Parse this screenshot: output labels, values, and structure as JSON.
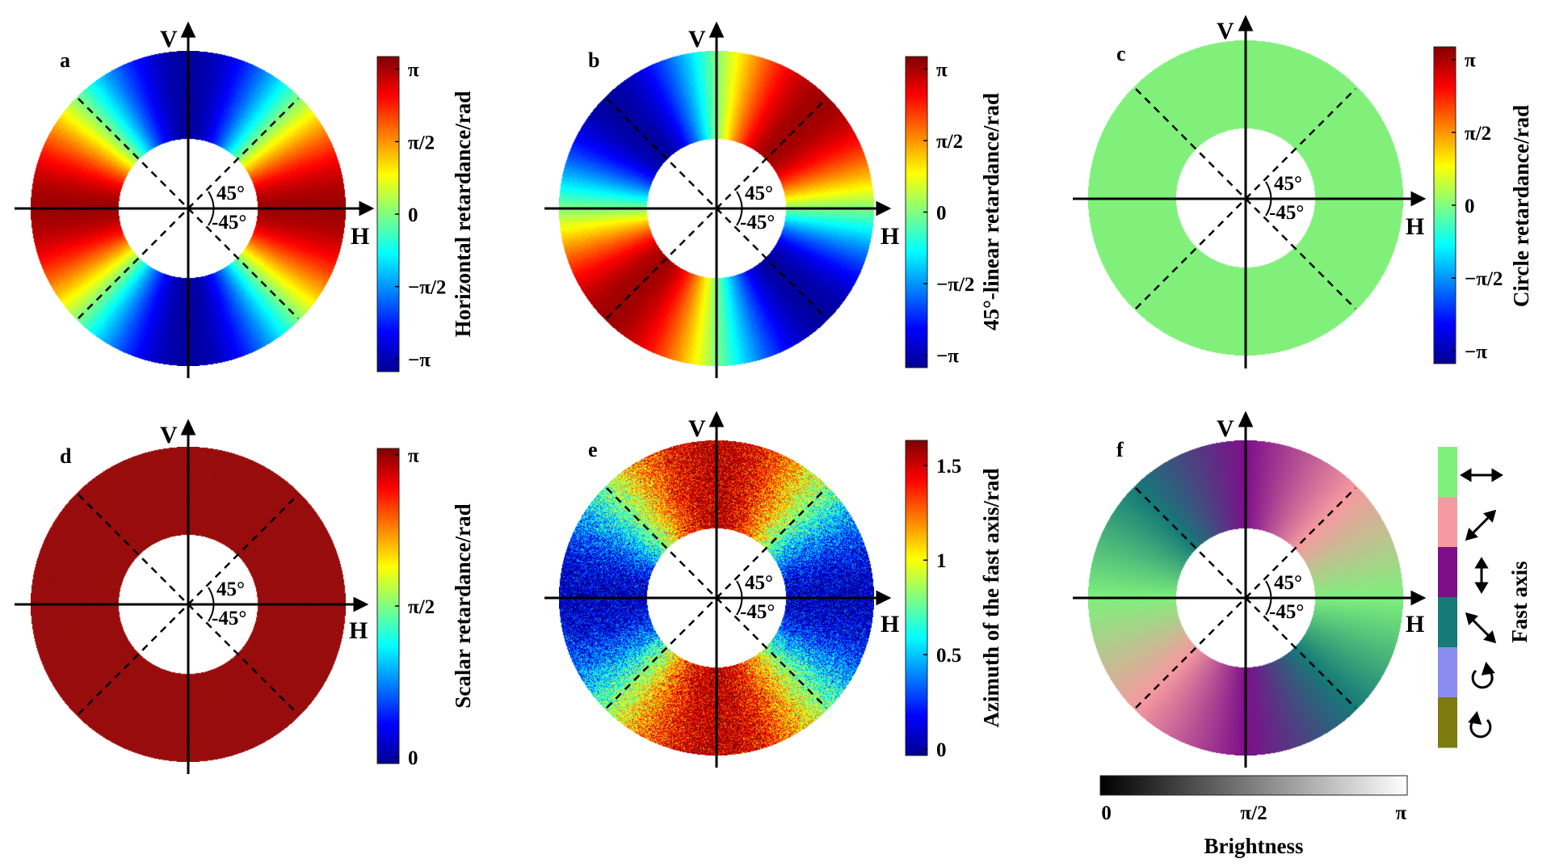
{
  "axes": {
    "v": "V",
    "h": "H",
    "angle_up": "45°",
    "angle_down": "-45°"
  },
  "colors": {
    "axis": "#000000",
    "uniform_circle": "#80f07a",
    "uniform_scalar": "#9a0d0d"
  },
  "panels": [
    {
      "letter": "a",
      "map": "horizontal",
      "colorbar_label": "Horizontal retardance/rad",
      "ticks": [
        {
          "label": "π",
          "value": 3.1416
        },
        {
          "label": "π/2",
          "value": 1.5708
        },
        {
          "label": "0",
          "value": 0
        },
        {
          "label": "−π/2",
          "value": -1.5708
        },
        {
          "label": "−π",
          "value": -3.1416
        }
      ],
      "range": [
        -3.1416,
        3.1416
      ]
    },
    {
      "letter": "b",
      "map": "linear45",
      "colorbar_label": "45°-linear retardance/rad",
      "ticks": [
        {
          "label": "π",
          "value": 3.1416
        },
        {
          "label": "π/2",
          "value": 1.5708
        },
        {
          "label": "0",
          "value": 0
        },
        {
          "label": "−π/2",
          "value": -1.5708
        },
        {
          "label": "−π",
          "value": -3.1416
        }
      ],
      "range": [
        -3.1416,
        3.1416
      ]
    },
    {
      "letter": "c",
      "map": "circle",
      "colorbar_label": "Circle retardance/rad",
      "ticks": [
        {
          "label": "π",
          "value": 3.1416
        },
        {
          "label": "π/2",
          "value": 1.5708
        },
        {
          "label": "0",
          "value": 0
        },
        {
          "label": "−π/2",
          "value": -1.5708
        },
        {
          "label": "−π",
          "value": -3.1416
        }
      ],
      "range": [
        -3.1416,
        3.1416
      ]
    },
    {
      "letter": "d",
      "map": "scalar",
      "colorbar_label": "Scalar retardance/rad",
      "ticks": [
        {
          "label": "π",
          "value": 3.1416
        },
        {
          "label": "π/2",
          "value": 1.5708
        },
        {
          "label": "0",
          "value": 0
        }
      ],
      "range": [
        0,
        3.1416
      ]
    },
    {
      "letter": "e",
      "map": "azimuth",
      "colorbar_label": "Azimuth of the fast axis/rad",
      "ticks": [
        {
          "label": "1.5",
          "value": 1.5
        },
        {
          "label": "1",
          "value": 1
        },
        {
          "label": "0.5",
          "value": 0.5
        },
        {
          "label": "0",
          "value": 0
        }
      ],
      "range": [
        0,
        1.6
      ]
    },
    {
      "letter": "f",
      "map": "fastaxis",
      "colorbar_label": "Fast axis",
      "legend": [
        {
          "color": "#7ff07c",
          "icon": "horizontal-double-arrow-icon"
        },
        {
          "color": "#f59aa0",
          "icon": "diagonal-up-right-double-arrow-icon"
        },
        {
          "color": "#7e0f8a",
          "icon": "vertical-double-arrow-icon"
        },
        {
          "color": "#157a78",
          "icon": "diagonal-down-right-double-arrow-icon"
        },
        {
          "color": "#8a8cf0",
          "icon": "clockwise-circle-arrow-icon"
        },
        {
          "color": "#7d7a10",
          "icon": "counterclockwise-circle-arrow-icon"
        }
      ],
      "brightness": {
        "label": "Brightness",
        "ticks": [
          {
            "label": "0",
            "value": 0
          },
          {
            "label": "π/2",
            "value": 1.5708
          },
          {
            "label": "π",
            "value": 3.1416
          }
        ],
        "range": [
          0,
          3.1416
        ]
      }
    }
  ]
}
